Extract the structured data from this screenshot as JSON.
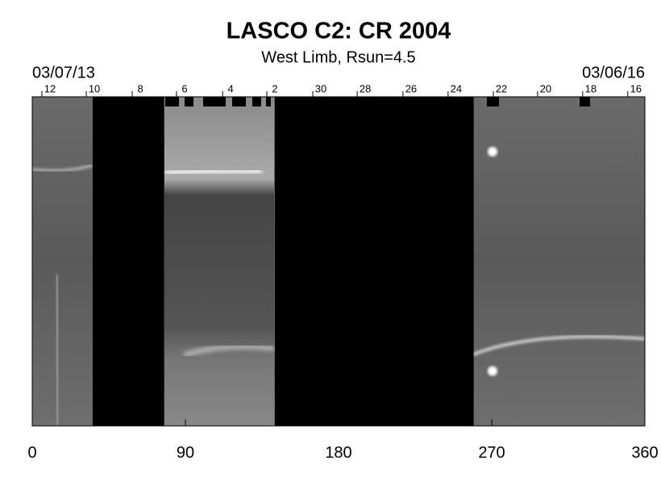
{
  "chart_data": {
    "type": "synoptic-map",
    "title": "LASCO C2: CR 2004",
    "subtitle": "West Limb, Rsun=4.5",
    "start_date": "03/07/13",
    "end_date": "03/06/16",
    "xlim": [
      0,
      360
    ],
    "xticks": [
      0,
      90,
      180,
      270,
      360
    ],
    "top_ticks": [
      {
        "value": 10.4,
        "label": "12"
      },
      {
        "value": 36.5,
        "label": "10"
      },
      {
        "value": 63.5,
        "label": "8"
      },
      {
        "value": 89.5,
        "label": "6"
      },
      {
        "value": 116.6,
        "label": "4"
      },
      {
        "value": 142.6,
        "label": "2"
      },
      {
        "value": 169.6,
        "label": "30"
      },
      {
        "value": 195.7,
        "label": "28"
      },
      {
        "value": 222.6,
        "label": "26"
      },
      {
        "value": 249.1,
        "label": "24"
      },
      {
        "value": 275.7,
        "label": "22"
      },
      {
        "value": 301.7,
        "label": "20"
      },
      {
        "value": 328.2,
        "label": "18"
      },
      {
        "value": 354.7,
        "label": "16"
      }
    ],
    "data_gaps": [
      [
        35.5,
        77.5
      ],
      [
        142.6,
        259.4
      ]
    ]
  }
}
